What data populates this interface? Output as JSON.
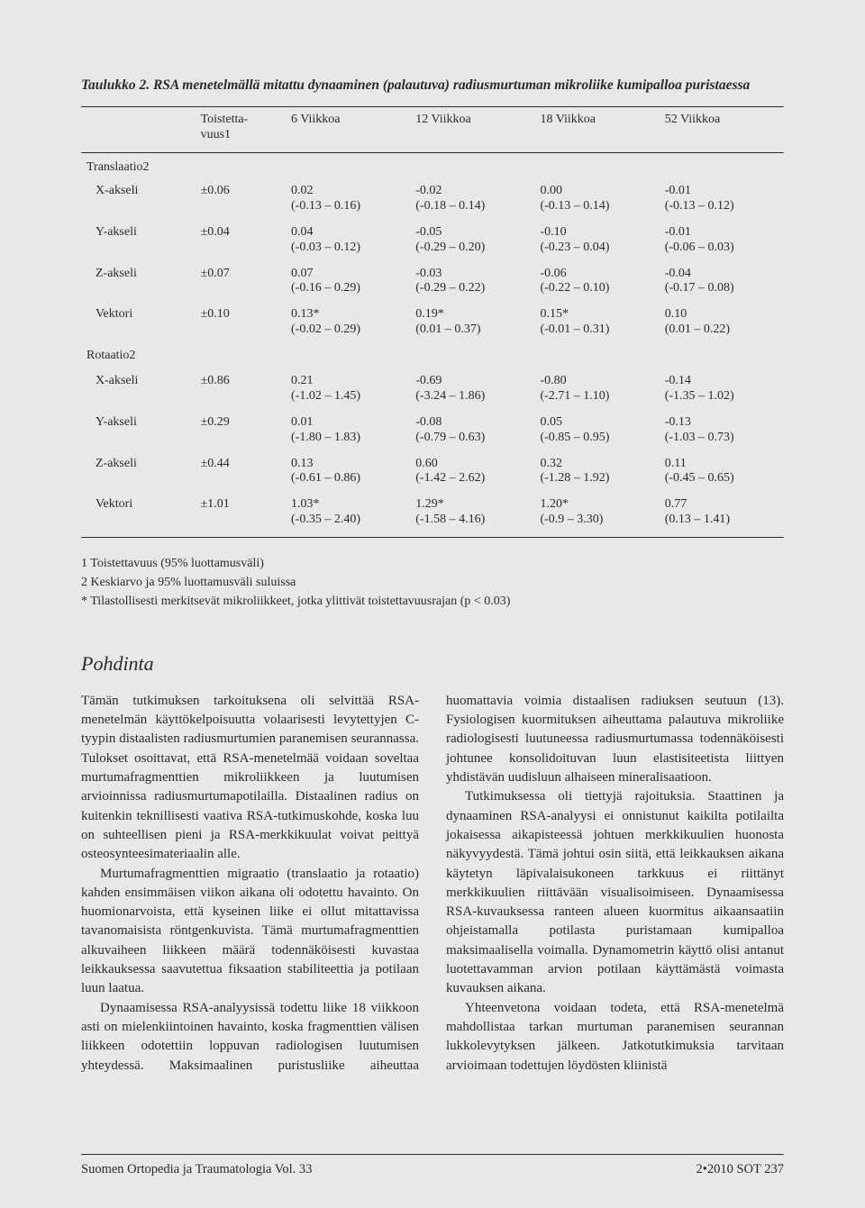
{
  "tableTitle": "Taulukko 2. RSA menetelmällä mitattu dynaaminen (palautuva) radiusmurtuman mikroliike kumipalloa puristaessa",
  "headers": {
    "blank": "",
    "rep": "Toistetta-\nvuus1",
    "w6": "6 Viikkoa",
    "w12": "12 Viikkoa",
    "w18": "18 Viikkoa",
    "w52": "52 Viikkoa"
  },
  "sectionTrans": "Translaatio2",
  "sectionRot": "Rotaatio2",
  "transRows": [
    {
      "label": "X-akseli",
      "rep": "±0.06",
      "w6v": "0.02",
      "w6ci": "(-0.13 – 0.16)",
      "w12v": "-0.02",
      "w12ci": "(-0.18 – 0.14)",
      "w18v": "0.00",
      "w18ci": "(-0.13 – 0.14)",
      "w52v": "-0.01",
      "w52ci": "(-0.13 – 0.12)"
    },
    {
      "label": "Y-akseli",
      "rep": "±0.04",
      "w6v": "0.04",
      "w6ci": "(-0.03 – 0.12)",
      "w12v": "-0.05",
      "w12ci": "(-0.29 – 0.20)",
      "w18v": "-0.10",
      "w18ci": "(-0.23 – 0.04)",
      "w52v": "-0.01",
      "w52ci": "(-0.06 – 0.03)"
    },
    {
      "label": "Z-akseli",
      "rep": "±0.07",
      "w6v": "0.07",
      "w6ci": "(-0.16 – 0.29)",
      "w12v": "-0.03",
      "w12ci": "(-0.29 – 0.22)",
      "w18v": "-0.06",
      "w18ci": "(-0.22 – 0.10)",
      "w52v": "-0.04",
      "w52ci": "(-0.17 – 0.08)"
    },
    {
      "label": "Vektori",
      "rep": "±0.10",
      "w6v": "0.13*",
      "w6ci": "(-0.02 – 0.29)",
      "w12v": "0.19*",
      "w12ci": "(0.01 – 0.37)",
      "w18v": "0.15*",
      "w18ci": "(-0.01 – 0.31)",
      "w52v": "0.10",
      "w52ci": "(0.01 – 0.22)"
    }
  ],
  "rotRows": [
    {
      "label": "X-akseli",
      "rep": "±0.86",
      "w6v": "0.21",
      "w6ci": "(-1.02 – 1.45)",
      "w12v": "-0.69",
      "w12ci": "(-3.24 – 1.86)",
      "w18v": "-0.80",
      "w18ci": "(-2.71 – 1.10)",
      "w52v": "-0.14",
      "w52ci": "(-1.35 – 1.02)"
    },
    {
      "label": "Y-akseli",
      "rep": "±0.29",
      "w6v": "0.01",
      "w6ci": "(-1.80 – 1.83)",
      "w12v": "-0.08",
      "w12ci": "(-0.79 – 0.63)",
      "w18v": "0.05",
      "w18ci": "(-0.85 – 0.95)",
      "w52v": "-0.13",
      "w52ci": "(-1.03 – 0.73)"
    },
    {
      "label": "Z-akseli",
      "rep": "±0.44",
      "w6v": "0.13",
      "w6ci": "(-0.61 – 0.86)",
      "w12v": "0.60",
      "w12ci": "(-1.42 – 2.62)",
      "w18v": "0.32",
      "w18ci": "(-1.28 – 1.92)",
      "w52v": "0.11",
      "w52ci": "(-0.45 – 0.65)"
    },
    {
      "label": "Vektori",
      "rep": "±1.01",
      "w6v": "1.03*",
      "w6ci": "(-0.35 – 2.40)",
      "w12v": "1.29*",
      "w12ci": "(-1.58 – 4.16)",
      "w18v": "1.20*",
      "w18ci": "(-0.9 – 3.30)",
      "w52v": "0.77",
      "w52ci": "(0.13 – 1.41)"
    }
  ],
  "footnotes": {
    "f1": "1  Toistettavuus (95% luottamusväli)",
    "f2": "2  Keskiarvo ja 95% luottamusväli suluissa",
    "f3": "* Tilastollisesti merkitsevät mikroliikkeet, jotka ylittivät toistettavuusrajan (p < 0.03)"
  },
  "heading": "Pohdinta",
  "body": {
    "p1": "Tämän tutkimuksen tarkoituksena oli selvittää RSA-menetelmän käyttökelpoisuutta volaarisesti levytettyjen C-tyypin distaalisten radiusmurtumien paranemisen seurannassa. Tulokset osoittavat, että RSA-menetelmää voidaan soveltaa murtumafragmenttien mikroliikkeen ja luutumisen arvioinnissa radiusmurtumapotilailla. Distaalinen radius on kuitenkin teknillisesti vaativa RSA-tutkimuskohde, koska luu on suhteellisen pieni ja RSA-merkkikuulat voivat peittyä osteosynteesimateriaalin alle.",
    "p2": "Murtumafragmenttien migraatio (translaatio ja rotaatio) kahden ensimmäisen viikon aikana oli odotettu havainto. On huomionarvoista, että kyseinen liike ei ollut mitattavissa tavanomaisista röntgenkuvista. Tämä murtumafragmenttien alkuvaiheen liikkeen määrä todennäköisesti kuvastaa leikkauksessa saavutettua fiksaation stabiliteettia ja potilaan luun laatua.",
    "p3": "Dynaamisessa RSA-analyysissä todettu liike 18 viikkoon asti on mielenkiintoinen havainto, koska fragmenttien välisen liikkeen odotettiin loppuvan radiologisen luutumisen yhteydessä. Maksimaalinen puristusliike aiheuttaa huomattavia voimia distaalisen radiuksen seutuun (13). Fysiologisen kuormituksen aiheuttama palautuva mikroliike radiologisesti luutuneessa radiusmurtumassa todennäköisesti johtunee konsolidoituvan luun elastisiteetista liittyen yhdistävän uudisluun alhaiseen mineralisaatioon.",
    "p4": "Tutkimuksessa oli tiettyjä rajoituksia. Staattinen ja dynaaminen RSA-analyysi ei onnistunut kaikilta potilailta jokaisessa aikapisteessä johtuen merkkikuulien huonosta näkyvyydestä. Tämä johtui osin siitä, että leikkauksen aikana käytetyn läpivalaisukoneen tarkkuus ei riittänyt merkkikuulien riittävään visualisoimiseen. Dynaamisessa RSA-kuvauksessa ranteen alueen kuormitus aikaansaatiin ohjeistamalla potilasta puristamaan kumipalloa maksimaalisella voimalla. Dynamometrin käyttö olisi antanut luotettavamman arvion potilaan käyttämästä voimasta kuvauksen aikana.",
    "p5": "Yhteenvetona voidaan todeta, että RSA-menetelmä mahdollistaa tarkan murtuman paranemisen seurannan lukkolevytyksen jälkeen. Jatkotutkimuksia tarvitaan arvioimaan todettujen löydösten kliinistä"
  },
  "footer": {
    "left": "Suomen Ortopedia ja Traumatologia  Vol. 33",
    "right": "2•2010  SOT  237"
  }
}
